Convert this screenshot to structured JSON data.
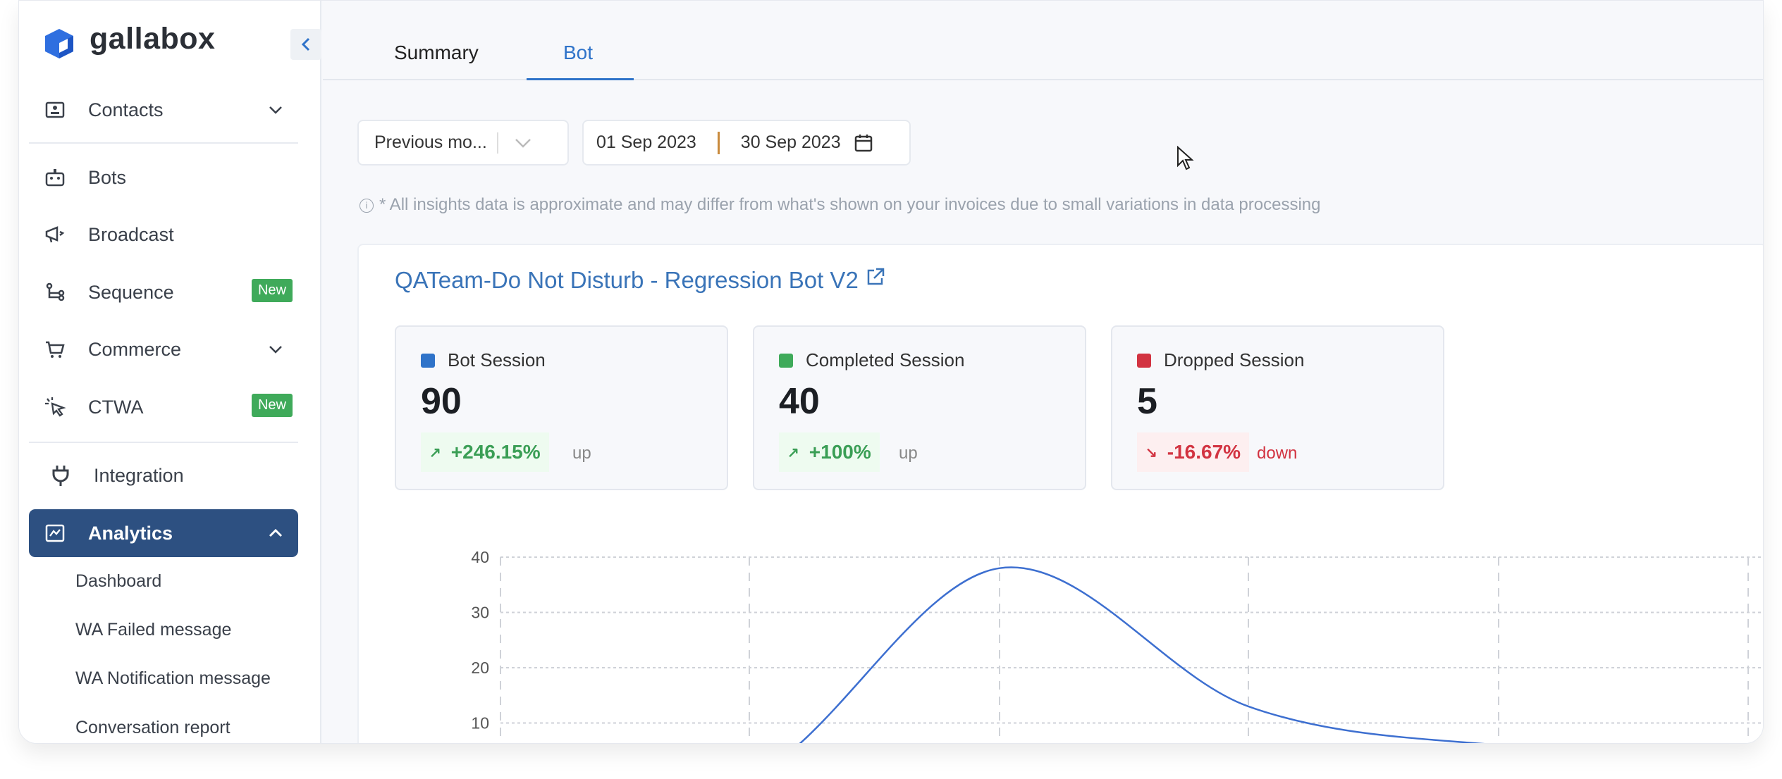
{
  "brand": {
    "name": "gallabox",
    "color": "#2f6fe0"
  },
  "sidebar": {
    "items": [
      {
        "label": "Contacts",
        "icon": "contact-card-icon",
        "chevron": "down"
      },
      {
        "label": "Bots",
        "icon": "robot-icon"
      },
      {
        "label": "Broadcast",
        "icon": "megaphone-icon"
      },
      {
        "label": "Sequence",
        "icon": "sequence-icon",
        "badge": "New"
      },
      {
        "label": "Commerce",
        "icon": "cart-icon",
        "chevron": "down"
      },
      {
        "label": "CTWA",
        "icon": "click-cursor-icon",
        "badge": "New"
      },
      {
        "label": "Integration",
        "icon": "plug-icon"
      },
      {
        "label": "Analytics",
        "icon": "chart-icon",
        "chevron": "up",
        "active": true
      }
    ],
    "analytics_sub": [
      "Dashboard",
      "WA Failed message",
      "WA Notification message",
      "Conversation report"
    ]
  },
  "tabs": [
    {
      "label": "Summary"
    },
    {
      "label": "Bot",
      "active": true
    }
  ],
  "filters": {
    "period": "Previous mo...",
    "start_date": "01 Sep 2023",
    "end_date": "30 Sep 2023"
  },
  "info_note": "* All insights data is approximate and may differ from what's shown on your invoices due to small variations in data processing",
  "bot": {
    "title": "QATeam-Do Not Disturb - Regression Bot V2"
  },
  "stats": [
    {
      "label": "Bot Session",
      "value": "90",
      "change": "+246.15%",
      "direction": "up",
      "color": "#2f73c9",
      "arrow": "↗"
    },
    {
      "label": "Completed Session",
      "value": "40",
      "change": "+100%",
      "direction": "up",
      "color": "#3faa5a",
      "arrow": "↗"
    },
    {
      "label": "Dropped Session",
      "value": "5",
      "change": "-16.67%",
      "direction": "down",
      "color": "#d23341",
      "arrow": "↘"
    }
  ],
  "chart_data": {
    "type": "line",
    "y_ticks": [
      "40",
      "30",
      "20",
      "10"
    ],
    "ylim": [
      0,
      40
    ],
    "values": [
      0,
      0,
      38,
      13,
      6,
      5
    ],
    "grid": true,
    "line_color": "#3d6fd0"
  }
}
